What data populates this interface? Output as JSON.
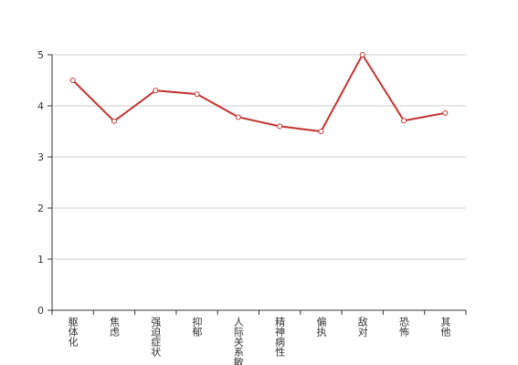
{
  "chart_data": {
    "type": "line",
    "categories": [
      "躯体化",
      "焦虑",
      "强迫症状",
      "抑郁",
      "人际关系敏感",
      "精神病性",
      "偏执",
      "敌对",
      "恐怖",
      "其他"
    ],
    "values": [
      4.5,
      3.7,
      4.3,
      4.23,
      3.78,
      3.6,
      3.5,
      5.0,
      3.71,
      3.86
    ],
    "color": "#c23531",
    "ylim": [
      0,
      5
    ],
    "yticks": [
      0,
      1,
      2,
      3,
      4,
      5
    ],
    "grid": true
  }
}
